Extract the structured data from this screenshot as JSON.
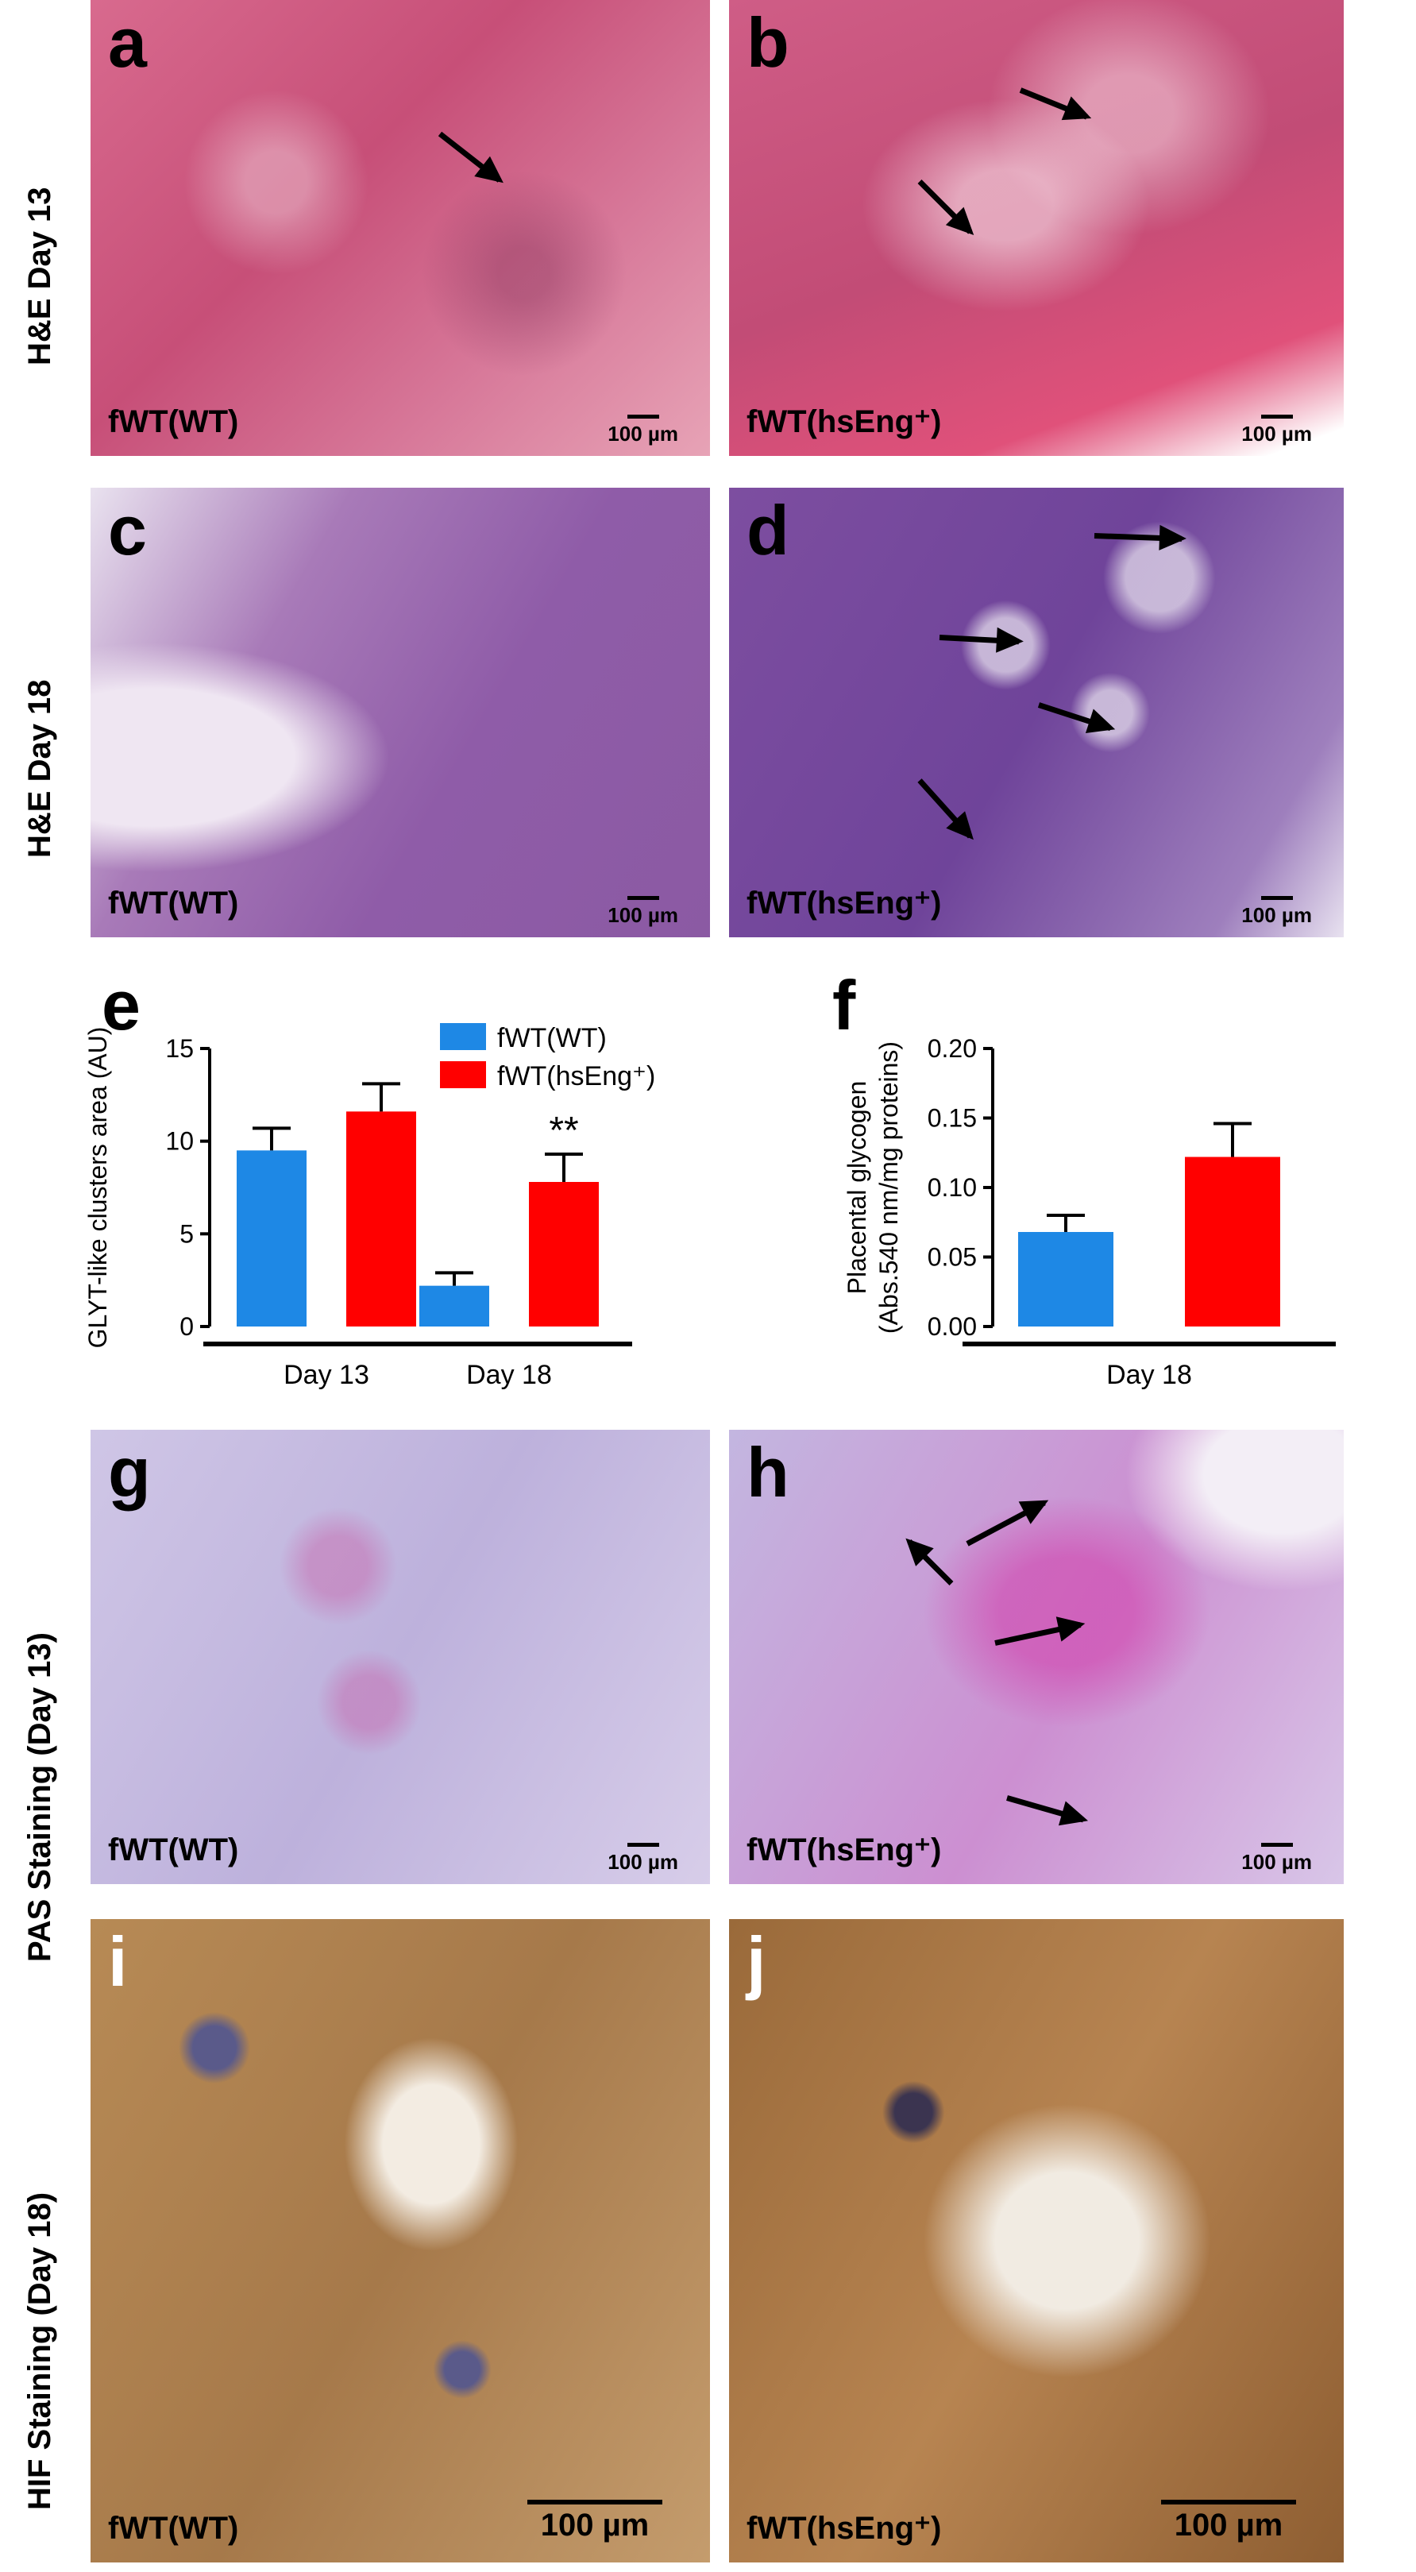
{
  "row_labels": {
    "he13": "H&E Day 13",
    "he18": "H&E Day 18",
    "pas13": "PAS Staining (Day 13)",
    "hif18": "HIF Staining (Day 18)"
  },
  "panels": {
    "a": {
      "letter": "a",
      "genotype": "fWT(WT)",
      "scale": "100 µm"
    },
    "b": {
      "letter": "b",
      "genotype": "fWT(hsEng⁺)",
      "scale": "100 µm"
    },
    "c": {
      "letter": "c",
      "genotype": "fWT(WT)",
      "scale": "100 µm"
    },
    "d": {
      "letter": "d",
      "genotype": "fWT(hsEng⁺)",
      "scale": "100 µm"
    },
    "g": {
      "letter": "g",
      "genotype": "fWT(WT)",
      "scale": "100 µm"
    },
    "h": {
      "letter": "h",
      "genotype": "fWT(hsEng⁺)",
      "scale": "100 µm"
    },
    "i": {
      "letter": "i",
      "genotype": "fWT(WT)",
      "scale": "100 µm"
    },
    "j": {
      "letter": "j",
      "genotype": "fWT(hsEng⁺)",
      "scale": "100 µm"
    }
  },
  "chart_letters": {
    "e": "e",
    "f": "f"
  },
  "colors": {
    "wt": "#1e88e5",
    "hseng": "#ff0000"
  },
  "chart_data": [
    {
      "type": "bar",
      "panel": "e",
      "ylabel": "GLYT-like clusters area (AU)",
      "ylim": [
        0,
        15
      ],
      "yticks": [
        "0",
        "5",
        "10",
        "15"
      ],
      "groups": [
        "Day 13",
        "Day 18"
      ],
      "series": [
        {
          "name": "fWT(WT)",
          "color": "#1e88e5",
          "values": [
            9.5,
            2.2
          ],
          "errors": [
            1.2,
            0.7
          ]
        },
        {
          "name": "fWT(hsEng⁺)",
          "color": "#ff0000",
          "values": [
            11.6,
            7.8
          ],
          "errors": [
            1.5,
            1.5
          ]
        }
      ],
      "annotations": [
        {
          "group": "Day 18",
          "series": 1,
          "text": "**"
        }
      ],
      "legend": "top-center"
    },
    {
      "type": "bar",
      "panel": "f",
      "ylabel": "Placental glycogen (Abs.540 nm/mg proteins)",
      "ylim": [
        0,
        0.2
      ],
      "yticks": [
        "0.00",
        "0.05",
        "0.10",
        "0.15",
        "0.20"
      ],
      "groups": [
        "Day 18"
      ],
      "series": [
        {
          "name": "fWT(WT)",
          "color": "#1e88e5",
          "values": [
            0.068
          ],
          "errors": [
            0.012
          ]
        },
        {
          "name": "fWT(hsEng⁺)",
          "color": "#ff0000",
          "values": [
            0.122
          ],
          "errors": [
            0.024
          ]
        }
      ]
    }
  ]
}
